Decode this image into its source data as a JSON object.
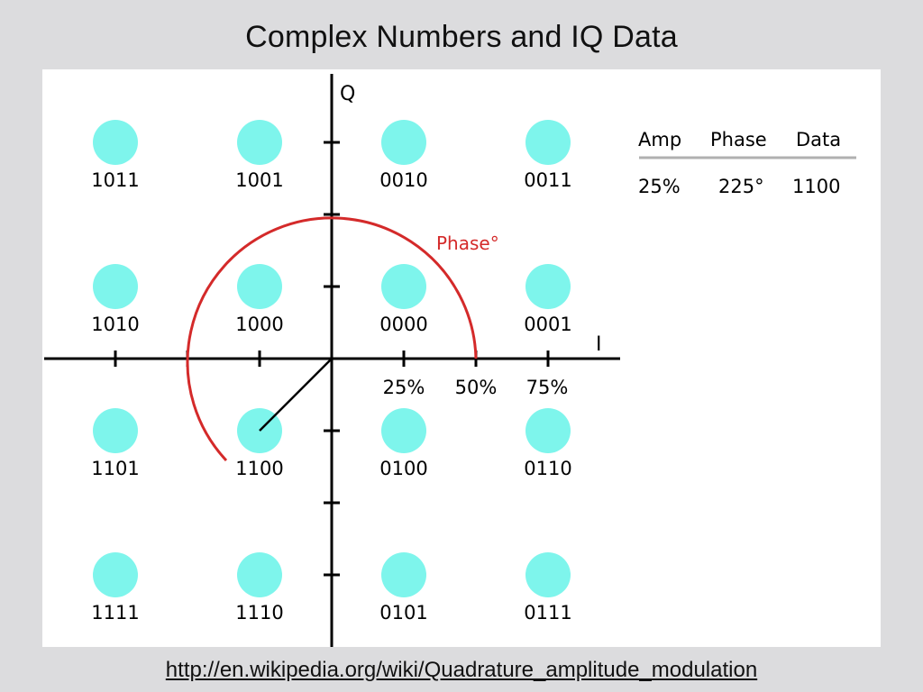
{
  "slide": {
    "title": "Complex Numbers and IQ  Data",
    "source_url": "http://en.wikipedia.org/wiki/Quadrature_amplitude_modulation"
  },
  "diagram": {
    "axes": {
      "i_label": "I",
      "q_label": "Q"
    },
    "tick_labels": [
      "25%",
      "50%",
      "75%"
    ],
    "phase_label": "Phase°",
    "constellation_rows": [
      [
        "1011",
        "1001",
        "0010",
        "0011"
      ],
      [
        "1010",
        "1000",
        "0000",
        "0001"
      ],
      [
        "1101",
        "1100",
        "0100",
        "0110"
      ],
      [
        "1111",
        "1110",
        "0101",
        "0111"
      ]
    ],
    "table": {
      "headers": [
        "Amp",
        "Phase",
        "Data"
      ],
      "values": [
        "25%",
        "225°",
        "1100"
      ]
    },
    "colors": {
      "point_fill": "#7ef5ec",
      "phase_arc": "#d42a2a",
      "axes": "#000000",
      "vector": "#000000"
    }
  }
}
